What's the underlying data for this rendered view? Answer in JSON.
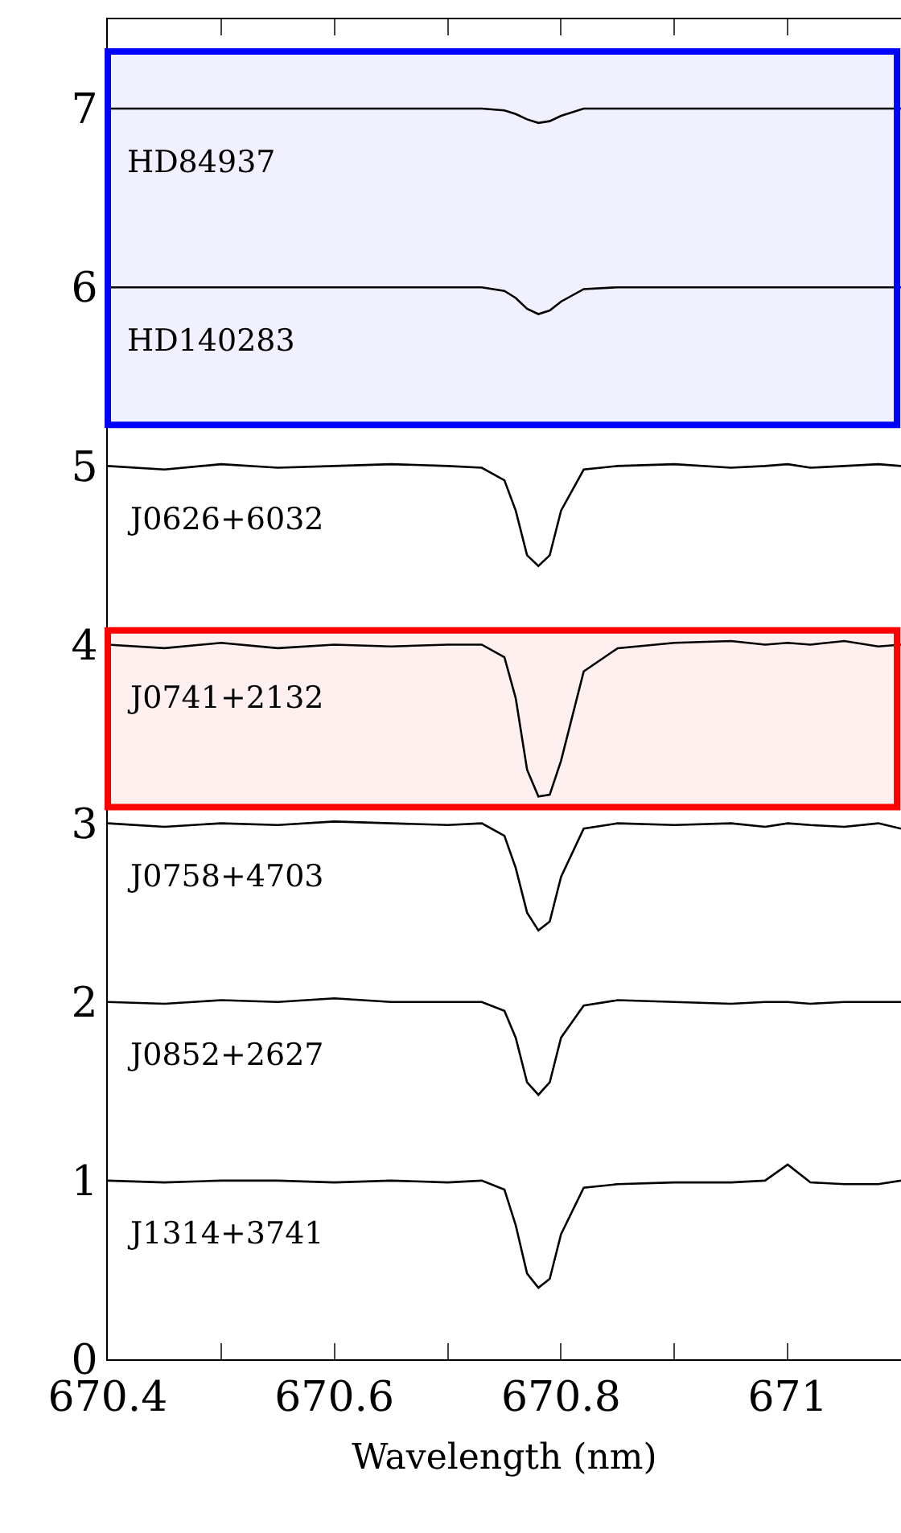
{
  "chart_data": {
    "type": "line",
    "xlabel": "Wavelength (nm)",
    "x": [
      670.4,
      670.45,
      670.5,
      670.55,
      670.6,
      670.65,
      670.7,
      670.73,
      670.75,
      670.76,
      670.77,
      670.78,
      670.79,
      670.8,
      670.82,
      670.85,
      670.9,
      670.95,
      670.98,
      671.0,
      671.02,
      671.05,
      671.08,
      671.1
    ],
    "series": [
      {
        "name": "HD84937",
        "color": "#000000",
        "values": [
          7.0,
          7.0,
          7.0,
          7.0,
          7.0,
          7.0,
          7.0,
          7.0,
          6.99,
          6.97,
          6.94,
          6.92,
          6.93,
          6.96,
          7.0,
          7.0,
          7.0,
          7.0,
          7.0,
          7.0,
          7.0,
          7.0,
          7.0,
          7.0
        ]
      },
      {
        "name": "HD140283",
        "color": "#000000",
        "values": [
          6.0,
          6.0,
          6.0,
          6.0,
          6.0,
          6.0,
          6.0,
          6.0,
          5.98,
          5.94,
          5.88,
          5.85,
          5.87,
          5.92,
          5.99,
          6.0,
          6.0,
          6.0,
          6.0,
          6.0,
          6.0,
          6.0,
          6.0,
          6.0
        ]
      },
      {
        "name": "J0626+6032",
        "color": "#000000",
        "values": [
          5.0,
          4.98,
          5.01,
          4.99,
          5.0,
          5.01,
          5.0,
          4.99,
          4.92,
          4.75,
          4.5,
          4.44,
          4.5,
          4.75,
          4.98,
          5.0,
          5.01,
          4.99,
          5.0,
          5.01,
          4.99,
          5.0,
          5.01,
          5.0
        ]
      },
      {
        "name": "J0741+2132",
        "color": "#000000",
        "values": [
          4.0,
          3.98,
          4.01,
          3.98,
          4.0,
          3.99,
          4.0,
          4.0,
          3.93,
          3.7,
          3.3,
          3.15,
          3.16,
          3.35,
          3.85,
          3.98,
          4.01,
          4.02,
          4.0,
          4.01,
          4.0,
          4.02,
          3.99,
          4.0
        ]
      },
      {
        "name": "J0758+4703",
        "color": "#000000",
        "values": [
          3.0,
          2.98,
          3.0,
          2.99,
          3.01,
          3.0,
          2.99,
          3.0,
          2.93,
          2.75,
          2.5,
          2.4,
          2.45,
          2.7,
          2.97,
          3.0,
          2.99,
          3.0,
          2.98,
          3.0,
          2.99,
          2.98,
          3.0,
          2.97
        ]
      },
      {
        "name": "J0852+2627",
        "color": "#000000",
        "values": [
          2.0,
          1.99,
          2.01,
          2.0,
          2.02,
          2.0,
          2.0,
          2.0,
          1.95,
          1.8,
          1.55,
          1.48,
          1.55,
          1.8,
          1.98,
          2.01,
          2.0,
          1.99,
          2.0,
          2.0,
          1.99,
          2.0,
          2.0,
          2.0
        ]
      },
      {
        "name": "J1314+3741",
        "color": "#000000",
        "values": [
          1.0,
          0.99,
          1.0,
          1.0,
          0.99,
          1.0,
          0.99,
          1.0,
          0.95,
          0.75,
          0.48,
          0.4,
          0.45,
          0.7,
          0.96,
          0.98,
          0.99,
          0.99,
          1.0,
          1.09,
          0.99,
          0.98,
          0.98,
          1.0
        ]
      }
    ],
    "xlim": [
      670.4,
      671.1
    ],
    "xticks": [
      670.4,
      {
        "value": 670.5,
        "label": null
      },
      670.6,
      {
        "value": 670.7,
        "label": null
      },
      670.8,
      {
        "value": 670.9,
        "label": null
      },
      671,
      {
        "value": 671.1,
        "label": null
      }
    ],
    "ylim": [
      0,
      7.5
    ],
    "yticks": [
      0,
      1,
      2,
      3,
      4,
      5,
      6,
      7
    ],
    "bands": [
      {
        "axis": "y",
        "from": 5.23,
        "to": 7.32,
        "color": "#0000ff"
      },
      {
        "axis": "y",
        "from": 3.09,
        "to": 4.08,
        "color": "#ff0000"
      }
    ],
    "grid": false,
    "legend": false,
    "line_style": "solid",
    "marker": "none"
  }
}
